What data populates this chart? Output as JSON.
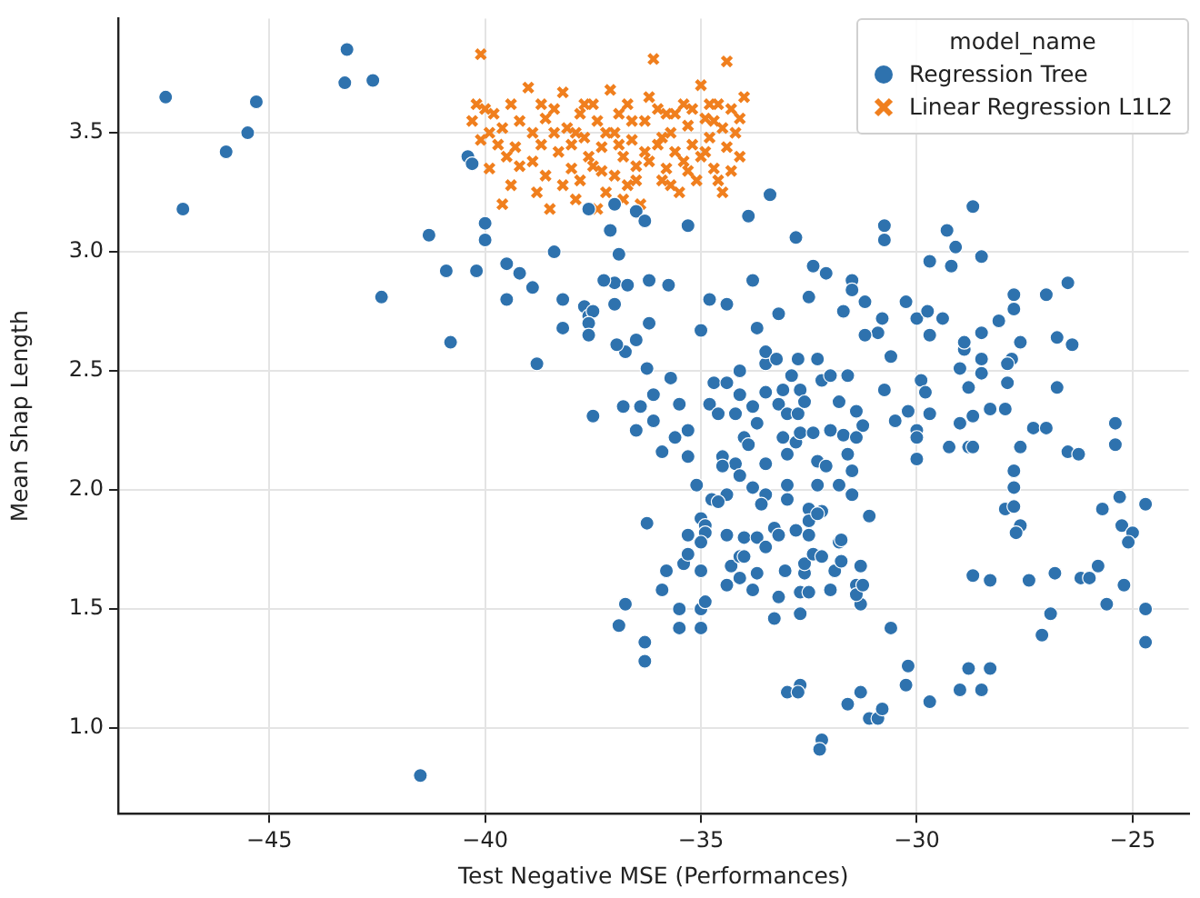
{
  "chart_data": {
    "type": "scatter",
    "xlabel": "Test Negative MSE (Performances)",
    "ylabel": "Mean Shap Length",
    "legend_title": "model_name",
    "legend": "top right",
    "grid": true,
    "xlim": [
      -48.5,
      -23.7
    ],
    "ylim": [
      0.64,
      3.98
    ],
    "xticks": [
      {
        "value": -45,
        "label": "−45"
      },
      {
        "value": -40,
        "label": "−40"
      },
      {
        "value": -35,
        "label": "−35"
      },
      {
        "value": -30,
        "label": "−30"
      },
      {
        "value": -25,
        "label": "−25"
      }
    ],
    "yticks": [
      {
        "value": 1,
        "label": "1.0"
      },
      {
        "value": 1.5,
        "label": "1.5"
      },
      {
        "value": 2,
        "label": "2.0"
      },
      {
        "value": 2.5,
        "label": "2.5"
      },
      {
        "value": 3,
        "label": "3.0"
      },
      {
        "value": 3.5,
        "label": "3.5"
      }
    ],
    "series": [
      {
        "name": "Regression Tree",
        "color": "#2e72ae",
        "marker": "circle",
        "x": [
          -47.4,
          -47.0,
          -46.0,
          -45.5,
          -45.3,
          -43.2,
          -43.25,
          -42.6,
          -42.4,
          -41.3,
          -40.9,
          -40.2,
          -40.8,
          -40.4,
          -40.3,
          -40.0,
          -40.0,
          -39.5,
          -39.2,
          -39.5,
          -38.9,
          -38.4,
          -38.2,
          -37.7,
          -38.2,
          -38.8,
          -37.5,
          -37.6,
          -37.0,
          -36.75,
          -41.5,
          -37.6,
          -37.0,
          -36.5,
          -36.3,
          -37.1,
          -35.3,
          -33.9,
          -33.4,
          -36.9,
          -32.8,
          -30.75,
          -30.75,
          -29.3,
          -29.1,
          -28.7,
          -28.5,
          -29.7,
          -29.2,
          -32.4,
          -32.1,
          -31.5,
          -31.5,
          -33.8,
          -37.25,
          -36.7,
          -36.2,
          -35.75,
          -37.5,
          -37.6,
          -37.6,
          -37.0,
          -36.5,
          -36.2,
          -36.95,
          -35.0,
          -34.8,
          -34.4,
          -33.7,
          -33.2,
          -32.5,
          -31.7,
          -31.2,
          -30.8,
          -30.9,
          -31.2,
          -30.25,
          -30.0,
          -29.75,
          -29.4,
          -29.7,
          -30.6,
          -30.75,
          -29.9,
          -29.8,
          -29.0,
          -28.9,
          -28.9,
          -28.5,
          -28.5,
          -28.5,
          -28.8,
          -28.1,
          -27.75,
          -27.75,
          -27.0,
          -26.5,
          -27.6,
          -27.8,
          -27.9,
          -27.9,
          -26.75,
          -26.4,
          -26.75,
          -27.95,
          -28.3,
          -28.7,
          -29.0,
          -28.8,
          -28.7,
          -29.25,
          -27.6,
          -27.3,
          -27.0,
          -26.5,
          -26.25,
          -25.4,
          -25.4,
          -27.75,
          -27.75,
          -27.95,
          -27.75,
          -27.6,
          -27.7,
          -25.7,
          -25.3,
          -24.7,
          -25.25,
          -25.0,
          -30.2,
          -30.5,
          -29.7,
          -30.0,
          -30.0,
          -30.0,
          -31.1,
          -31.8,
          -36.8,
          -36.4,
          -36.1,
          -35.7,
          -36.25,
          -36.5,
          -36.1,
          -35.9,
          -35.3,
          -35.6,
          -35.3,
          -35.5,
          -34.7,
          -34.8,
          -34.6,
          -34.4,
          -34.1,
          -34.1,
          -34.2,
          -33.8,
          -33.7,
          -34.0,
          -33.9,
          -34.5,
          -34.2,
          -34.5,
          -34.1,
          -33.5,
          -33.5,
          -33.5,
          -33.25,
          -32.75,
          -32.3,
          -33.5,
          -33.1,
          -32.9,
          -32.7,
          -33.2,
          -33.0,
          -32.75,
          -32.6,
          -32.2,
          -32.0,
          -31.6,
          -31.8,
          -31.4,
          -31.25,
          -33.1,
          -32.8,
          -32.7,
          -32.4,
          -32.0,
          -31.7,
          -31.4,
          -33.0,
          -32.3,
          -32.1,
          -31.6,
          -31.5,
          -32.3,
          -31.8,
          -31.5,
          -33.0,
          -33.8,
          -33.5,
          -33.0,
          -34.75,
          -34.4,
          -34.6,
          -35.1,
          -33.6,
          -32.5,
          -32.2,
          -32.5,
          -33.3,
          -35.0,
          -34.9,
          -35.3,
          -34.9,
          -34.4,
          -34.0,
          -33.7,
          -33.2,
          -32.8,
          -32.5,
          -36.25,
          -35.8,
          -35.9,
          -35.4,
          -35.3,
          -35.0,
          -35.0,
          -35.5,
          -35.5,
          -35.0,
          -35.0,
          -34.9,
          -34.4,
          -34.3,
          -34.1,
          -34.1,
          -34.0,
          -33.8,
          -33.7,
          -33.5,
          -33.3,
          -33.2,
          -33.05,
          -32.7,
          -32.7,
          -32.5,
          -32.6,
          -32.6,
          -32.4,
          -32.2,
          -32.0,
          -31.9,
          -31.75,
          -31.3,
          -31.4,
          -31.3,
          -31.4,
          -31.25,
          -32.3,
          -31.75,
          -36.75,
          -36.9,
          -36.3,
          -36.3,
          -33.0,
          -32.7,
          -32.75,
          -32.2,
          -32.25,
          -31.6,
          -31.3,
          -31.1,
          -30.9,
          -30.8,
          -30.6,
          -30.25,
          -30.2,
          -29.7,
          -29.0,
          -28.8,
          -28.5,
          -28.3,
          -28.7,
          -28.3,
          -27.4,
          -26.9,
          -27.1,
          -26.8,
          -26.2,
          -26.0,
          -25.8,
          -25.6,
          -25.2,
          -24.7,
          -24.7,
          -25.1
        ],
        "values": [
          3.65,
          3.18,
          3.42,
          3.5,
          3.63,
          3.85,
          3.71,
          3.72,
          2.81,
          3.07,
          2.92,
          2.92,
          2.62,
          3.4,
          3.37,
          3.05,
          3.12,
          2.95,
          2.91,
          2.8,
          2.85,
          3.0,
          2.8,
          2.77,
          2.68,
          2.53,
          2.31,
          2.73,
          2.87,
          2.58,
          0.8,
          3.18,
          3.2,
          3.17,
          3.13,
          3.09,
          3.11,
          3.15,
          3.24,
          2.99,
          3.06,
          3.11,
          3.05,
          3.09,
          3.02,
          3.19,
          2.98,
          2.96,
          2.94,
          2.94,
          2.91,
          2.88,
          2.84,
          2.88,
          2.88,
          2.86,
          2.88,
          2.86,
          2.75,
          2.7,
          2.65,
          2.78,
          2.63,
          2.7,
          2.61,
          2.67,
          2.8,
          2.78,
          2.68,
          2.74,
          2.81,
          2.75,
          2.79,
          2.72,
          2.66,
          2.65,
          2.79,
          2.72,
          2.75,
          2.72,
          2.65,
          2.56,
          2.42,
          2.46,
          2.41,
          2.51,
          2.59,
          2.62,
          2.66,
          2.55,
          2.49,
          2.43,
          2.71,
          2.82,
          2.76,
          2.82,
          2.87,
          2.62,
          2.55,
          2.53,
          2.45,
          2.64,
          2.61,
          2.43,
          2.34,
          2.34,
          2.31,
          2.28,
          2.18,
          2.18,
          2.18,
          2.18,
          2.26,
          2.26,
          2.16,
          2.15,
          2.28,
          2.19,
          2.08,
          2.01,
          1.92,
          1.93,
          1.85,
          1.82,
          1.92,
          1.97,
          1.94,
          1.85,
          1.82,
          2.33,
          2.29,
          2.32,
          2.25,
          2.22,
          2.13,
          1.89,
          1.78,
          2.35,
          2.35,
          2.4,
          2.47,
          2.51,
          2.25,
          2.29,
          2.16,
          2.14,
          2.22,
          2.25,
          2.36,
          2.45,
          2.36,
          2.32,
          2.45,
          2.5,
          2.4,
          2.32,
          2.35,
          2.28,
          2.22,
          2.19,
          2.14,
          2.11,
          2.1,
          2.06,
          2.11,
          2.53,
          2.58,
          2.55,
          2.55,
          2.55,
          2.41,
          2.42,
          2.48,
          2.42,
          2.36,
          2.32,
          2.32,
          2.37,
          2.46,
          2.48,
          2.48,
          2.37,
          2.33,
          2.27,
          2.22,
          2.2,
          2.24,
          2.24,
          2.25,
          2.23,
          2.22,
          2.15,
          2.12,
          2.1,
          2.15,
          2.08,
          2.02,
          2.02,
          1.98,
          2.02,
          2.01,
          1.98,
          1.96,
          1.96,
          1.98,
          1.95,
          2.02,
          1.94,
          1.92,
          1.91,
          1.87,
          1.84,
          1.88,
          1.85,
          1.81,
          1.82,
          1.81,
          1.8,
          1.8,
          1.81,
          1.83,
          1.81,
          1.86,
          1.66,
          1.58,
          1.69,
          1.73,
          1.78,
          1.66,
          1.5,
          1.42,
          1.42,
          1.5,
          1.53,
          1.6,
          1.68,
          1.63,
          1.72,
          1.72,
          1.58,
          1.65,
          1.76,
          1.46,
          1.55,
          1.66,
          1.48,
          1.57,
          1.57,
          1.65,
          1.69,
          1.73,
          1.72,
          1.58,
          1.66,
          1.7,
          1.68,
          1.6,
          1.52,
          1.56,
          1.6,
          1.9,
          1.79,
          1.52,
          1.43,
          1.36,
          1.28,
          1.15,
          1.18,
          1.15,
          0.95,
          0.91,
          1.1,
          1.15,
          1.04,
          1.04,
          1.08,
          1.42,
          1.18,
          1.26,
          1.11,
          1.16,
          1.25,
          1.16,
          1.25,
          1.64,
          1.62,
          1.62,
          1.48,
          1.39,
          1.65,
          1.63,
          1.63,
          1.68,
          1.52,
          1.6,
          1.5,
          1.36,
          1.78
        ]
      },
      {
        "name": "Linear Regression L1L2",
        "color": "#f07f1e",
        "marker": "cross",
        "x": [
          -40.1,
          -40.3,
          -40.2,
          -40.0,
          -39.9,
          -40.1,
          -39.8,
          -39.6,
          -39.7,
          -39.9,
          -39.5,
          -39.3,
          -39.4,
          -39.6,
          -39.2,
          -39.0,
          -38.9,
          -38.7,
          -38.9,
          -38.6,
          -38.8,
          -38.5,
          -38.4,
          -38.2,
          -38.1,
          -38.3,
          -38.0,
          -38.2,
          -37.9,
          -37.8,
          -37.7,
          -37.6,
          -37.8,
          -37.5,
          -37.4,
          -37.3,
          -37.5,
          -37.2,
          -37.1,
          -37.0,
          -36.9,
          -36.8,
          -37.0,
          -36.7,
          -36.6,
          -36.5,
          -36.7,
          -36.4,
          -36.3,
          -36.2,
          -36.1,
          -36.0,
          -36.2,
          -35.9,
          -35.8,
          -35.7,
          -35.6,
          -35.8,
          -35.5,
          -35.4,
          -35.3,
          -35.2,
          -35.4,
          -35.1,
          -35.0,
          -34.9,
          -34.8,
          -35.0,
          -34.7,
          -34.6,
          -34.5,
          -34.4,
          -34.6,
          -34.3,
          -34.2,
          -34.1,
          -34.3,
          -34.0,
          -34.1,
          -34.4,
          -39.2,
          -38.6,
          -38.0,
          -37.3,
          -36.6,
          -36.0,
          -35.3,
          -34.8,
          -39.4,
          -38.4,
          -37.7,
          -36.9,
          -36.3,
          -35.6,
          -34.9,
          -37.9,
          -37.2,
          -35.9,
          -35.2,
          -34.7,
          -38.7,
          -36.5,
          -35.7,
          -34.5,
          -37.4,
          -36.8
        ],
        "values": [
          3.83,
          3.55,
          3.62,
          3.6,
          3.5,
          3.47,
          3.58,
          3.52,
          3.45,
          3.35,
          3.4,
          3.44,
          3.28,
          3.2,
          3.55,
          3.69,
          3.5,
          3.45,
          3.38,
          3.32,
          3.25,
          3.18,
          3.6,
          3.67,
          3.52,
          3.42,
          3.35,
          3.28,
          3.22,
          3.58,
          3.48,
          3.4,
          3.3,
          3.62,
          3.55,
          3.44,
          3.36,
          3.25,
          3.68,
          3.5,
          3.58,
          3.4,
          3.32,
          3.62,
          3.47,
          3.36,
          3.28,
          3.2,
          3.55,
          3.65,
          3.81,
          3.45,
          3.38,
          3.3,
          3.58,
          3.5,
          3.42,
          3.35,
          3.25,
          3.62,
          3.53,
          3.45,
          3.38,
          3.3,
          3.7,
          3.56,
          3.48,
          3.4,
          3.35,
          3.62,
          3.52,
          3.44,
          3.3,
          3.6,
          3.5,
          3.4,
          3.34,
          3.65,
          3.56,
          3.8,
          3.36,
          3.56,
          3.45,
          3.34,
          3.55,
          3.6,
          3.34,
          3.62,
          3.62,
          3.5,
          3.62,
          3.45,
          3.42,
          3.58,
          3.42,
          3.5,
          3.5,
          3.48,
          3.6,
          3.55,
          3.62,
          3.3,
          3.28,
          3.25,
          3.18,
          3.22
        ]
      }
    ]
  }
}
